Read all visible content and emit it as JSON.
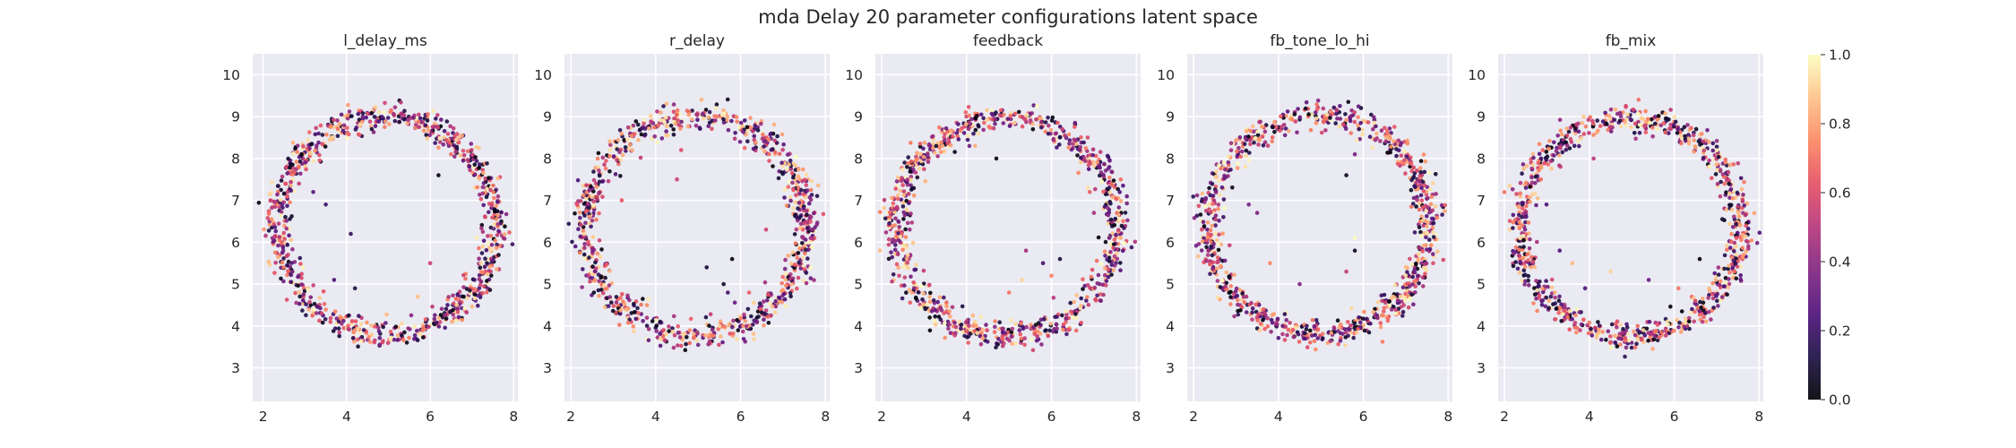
{
  "figure": {
    "title": "mda Delay 20 parameter configurations latent space"
  },
  "chart_data": [
    {
      "type": "scatter",
      "title": "l_delay_ms",
      "xlim": [
        1.75,
        8.1
      ],
      "ylim": [
        2.2,
        10.5
      ],
      "xticks": [
        2,
        4,
        6,
        8
      ],
      "yticks": [
        3,
        4,
        5,
        6,
        7,
        8,
        9,
        10
      ],
      "grid": true,
      "ring": {
        "center": [
          4.95,
          6.4
        ],
        "radius": 2.6,
        "spread": 0.16,
        "n_points": 900,
        "seed": 11,
        "interior_outliers": [
          [
            3.5,
            6.9
          ],
          [
            3.2,
            7.2
          ],
          [
            3.7,
            5.1
          ],
          [
            4.2,
            4.9
          ],
          [
            6.0,
            5.5
          ],
          [
            6.2,
            7.6
          ],
          [
            6.5,
            8.1
          ],
          [
            4.1,
            6.2
          ],
          [
            5.7,
            4.7
          ],
          [
            4.6,
            8.7
          ]
        ]
      }
    },
    {
      "type": "scatter",
      "title": "r_delay",
      "xlim": [
        1.85,
        8.1
      ],
      "ylim": [
        2.2,
        10.5
      ],
      "xticks": [
        2,
        4,
        6,
        8
      ],
      "yticks": [
        3,
        4,
        5,
        6,
        7,
        8,
        9,
        10
      ],
      "grid": true,
      "ring": {
        "center": [
          4.95,
          6.4
        ],
        "radius": 2.6,
        "spread": 0.16,
        "n_points": 900,
        "seed": 23,
        "interior_outliers": [
          [
            4.5,
            7.5
          ],
          [
            5.2,
            5.4
          ],
          [
            5.8,
            5.6
          ],
          [
            5.6,
            5.0
          ],
          [
            6.2,
            4.8
          ],
          [
            4.6,
            8.2
          ],
          [
            3.2,
            7.0
          ],
          [
            6.6,
            6.3
          ],
          [
            5.7,
            4.8
          ]
        ]
      }
    },
    {
      "type": "scatter",
      "title": "feedback",
      "xlim": [
        1.85,
        8.1
      ],
      "ylim": [
        2.2,
        10.5
      ],
      "xticks": [
        2,
        4,
        6,
        8
      ],
      "yticks": [
        3,
        4,
        5,
        6,
        7,
        8,
        9,
        10
      ],
      "grid": true,
      "ring": {
        "center": [
          4.95,
          6.35
        ],
        "radius": 2.6,
        "spread": 0.16,
        "n_points": 900,
        "seed": 37,
        "interior_outliers": [
          [
            5.0,
            4.8
          ],
          [
            5.4,
            5.8
          ],
          [
            6.0,
            5.2
          ],
          [
            6.2,
            5.6
          ],
          [
            5.3,
            5.1
          ],
          [
            4.7,
            8.0
          ],
          [
            4.2,
            8.3
          ],
          [
            6.9,
            7.2
          ],
          [
            7.0,
            6.7
          ],
          [
            5.8,
            5.5
          ]
        ]
      }
    },
    {
      "type": "scatter",
      "title": "fb_tone_lo_hi",
      "xlim": [
        1.85,
        8.1
      ],
      "ylim": [
        2.2,
        10.5
      ],
      "xticks": [
        2,
        4,
        6,
        8
      ],
      "yticks": [
        3,
        4,
        5,
        6,
        7,
        8,
        9,
        10
      ],
      "grid": true,
      "ring": {
        "center": [
          4.95,
          6.4
        ],
        "radius": 2.6,
        "spread": 0.16,
        "n_points": 900,
        "seed": 53,
        "interior_outliers": [
          [
            5.8,
            6.1
          ],
          [
            5.8,
            5.8
          ],
          [
            5.6,
            5.3
          ],
          [
            3.5,
            6.7
          ],
          [
            3.8,
            5.5
          ],
          [
            5.6,
            7.6
          ],
          [
            5.8,
            8.1
          ],
          [
            5.9,
            8.7
          ],
          [
            4.5,
            5.0
          ],
          [
            3.3,
            6.9
          ]
        ]
      }
    },
    {
      "type": "scatter",
      "title": "fb_mix",
      "xlim": [
        1.85,
        8.1
      ],
      "ylim": [
        2.2,
        10.5
      ],
      "xticks": [
        2,
        4,
        6,
        8
      ],
      "yticks": [
        3,
        4,
        5,
        6,
        7,
        8,
        9,
        10
      ],
      "grid": true,
      "ring": {
        "center": [
          4.95,
          6.35
        ],
        "radius": 2.6,
        "spread": 0.16,
        "n_points": 900,
        "seed": 71,
        "interior_outliers": [
          [
            3.3,
            5.8
          ],
          [
            3.6,
            5.5
          ],
          [
            4.5,
            5.3
          ],
          [
            6.1,
            4.9
          ],
          [
            6.6,
            5.6
          ],
          [
            4.1,
            8.0
          ],
          [
            5.4,
            5.1
          ],
          [
            6.5,
            4.6
          ],
          [
            3.9,
            4.9
          ]
        ]
      }
    }
  ],
  "colorbar": {
    "range": [
      0.0,
      1.0
    ],
    "ticks": [
      "0.0",
      "0.2",
      "0.4",
      "0.6",
      "0.8",
      "1.0"
    ],
    "colormap": "magma",
    "stops": [
      "#000004",
      "#1c1044",
      "#4f127b",
      "#812581",
      "#b5367a",
      "#e55064",
      "#fb8761",
      "#fec287",
      "#fcfdbf"
    ]
  },
  "style": {
    "axes_bg": "#eaeaf2",
    "grid_color": "#ffffff",
    "text_color": "#262626"
  }
}
